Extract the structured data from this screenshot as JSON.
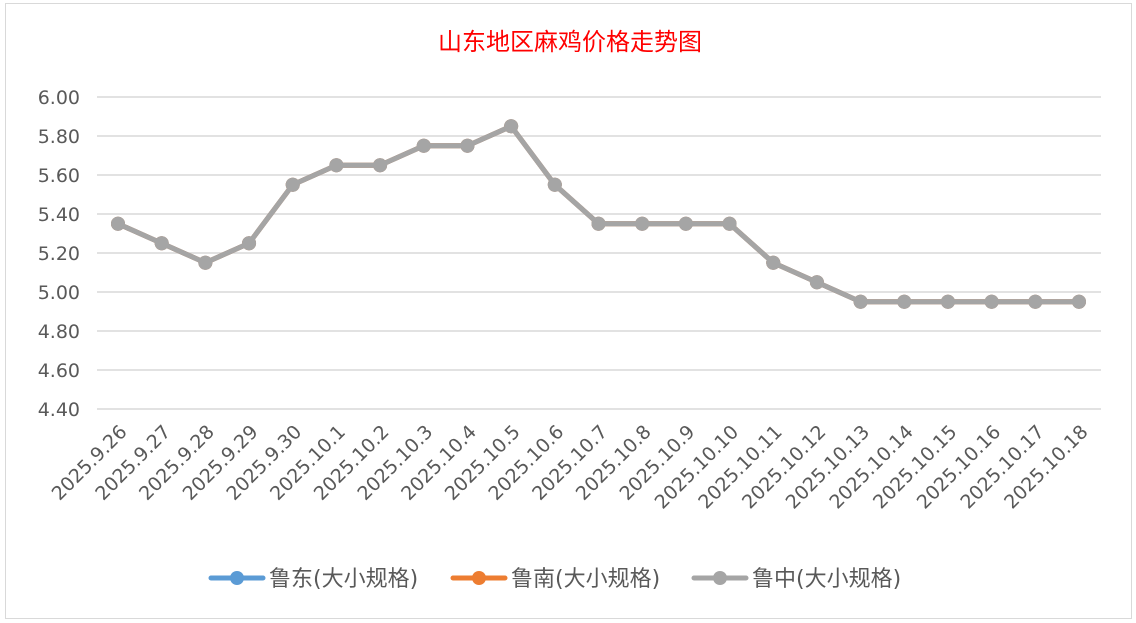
{
  "chart_data": {
    "type": "line",
    "title": "山东地区麻鸡价格走势图",
    "title_color": "#ff0000",
    "xlabel": "",
    "ylabel": "",
    "ylim": [
      4.4,
      6.0
    ],
    "yticks": [
      "4.40",
      "4.60",
      "4.80",
      "5.00",
      "5.20",
      "5.40",
      "5.60",
      "5.80",
      "6.00"
    ],
    "grid": true,
    "legend_position": "bottom",
    "categories": [
      "2025.9.26",
      "2025.9.27",
      "2025.9.28",
      "2025.9.29",
      "2025.9.30",
      "2025.10.1",
      "2025.10.2",
      "2025.10.3",
      "2025.10.4",
      "2025.10.5",
      "2025.10.6",
      "2025.10.7",
      "2025.10.8",
      "2025.10.9",
      "2025.10.10",
      "2025.10.11",
      "2025.10.12",
      "2025.10.13",
      "2025.10.14",
      "2025.10.15",
      "2025.10.16",
      "2025.10.17",
      "2025.10.18"
    ],
    "series": [
      {
        "name": "鲁东(大小规格)",
        "color": "#5b9bd5",
        "values": [
          5.35,
          5.25,
          5.15,
          5.25,
          5.55,
          5.65,
          5.65,
          5.75,
          5.75,
          5.85,
          5.55,
          5.35,
          5.35,
          5.35,
          5.35,
          5.15,
          5.05,
          4.95,
          4.95,
          4.95,
          4.95,
          4.95,
          4.95
        ]
      },
      {
        "name": "鲁南(大小规格)",
        "color": "#ed7d31",
        "values": [
          5.35,
          5.25,
          5.15,
          5.25,
          5.55,
          5.65,
          5.65,
          5.75,
          5.75,
          5.85,
          5.55,
          5.35,
          5.35,
          5.35,
          5.35,
          5.15,
          5.05,
          4.95,
          4.95,
          4.95,
          4.95,
          4.95,
          4.95
        ]
      },
      {
        "name": "鲁中(大小规格)",
        "color": "#a5a5a5",
        "values": [
          5.35,
          5.25,
          5.15,
          5.25,
          5.55,
          5.65,
          5.65,
          5.75,
          5.75,
          5.85,
          5.55,
          5.35,
          5.35,
          5.35,
          5.35,
          5.15,
          5.05,
          4.95,
          4.95,
          4.95,
          4.95,
          4.95,
          4.95
        ]
      }
    ]
  }
}
